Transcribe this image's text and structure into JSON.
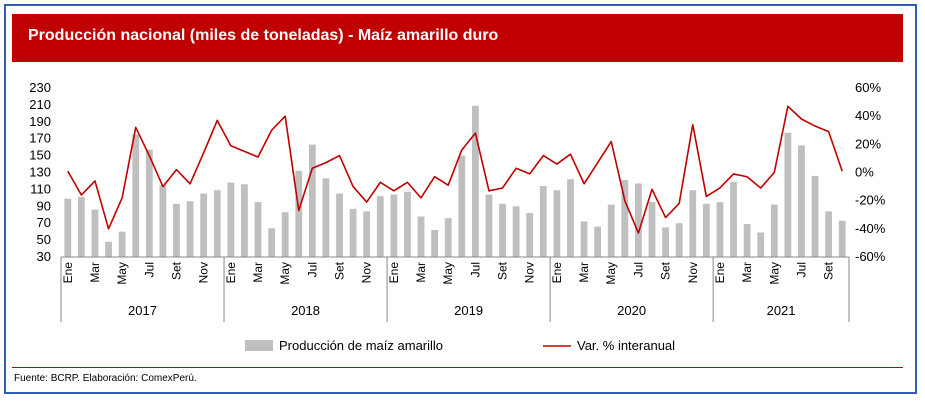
{
  "header": {
    "title": "Producción nacional (miles de toneladas) - Maíz amarillo duro"
  },
  "footer": {
    "source": "Fuente: BCRP. Elaboración: ComexPerú."
  },
  "colors": {
    "title_bg": "#c00000",
    "frame_border": "#2f5fb3",
    "bar": "#bfbfbf",
    "line": "#c00000"
  },
  "chart_data": {
    "type": "bar",
    "title": "",
    "x_tick_labels": [
      "Ene",
      "Mar",
      "May",
      "Jul",
      "Set",
      "Nov"
    ],
    "years": [
      "2017",
      "2018",
      "2019",
      "2020",
      "2021"
    ],
    "months_per_year": [
      12,
      12,
      12,
      12,
      10
    ],
    "y_left": {
      "lim": [
        30,
        230
      ],
      "ticks": [
        30,
        50,
        70,
        90,
        110,
        130,
        150,
        170,
        190,
        210,
        230
      ]
    },
    "y_right": {
      "lim": [
        -60,
        60
      ],
      "ticks": [
        "-60%",
        "-40%",
        "-20%",
        "0%",
        "20%",
        "40%",
        "60%"
      ],
      "tick_values": [
        -60,
        -40,
        -20,
        0,
        20,
        40,
        60
      ]
    },
    "legend": {
      "position": "bottom",
      "bar_label": "Producción de maíz amarillo",
      "line_label": "Var. % interanual"
    },
    "series": [
      {
        "name": "Producción de maíz amarillo",
        "type": "bar",
        "axis": "left",
        "values": [
          99,
          101,
          86,
          48,
          60,
          175,
          157,
          115,
          93,
          96,
          105,
          109,
          118,
          116,
          95,
          64,
          83,
          132,
          163,
          123,
          105,
          87,
          84,
          102,
          104,
          107,
          78,
          62,
          76,
          150,
          209,
          104,
          93,
          90,
          82,
          114,
          109,
          122,
          72,
          66,
          92,
          121,
          117,
          95,
          65,
          70,
          109,
          93,
          95,
          119,
          69,
          59,
          92,
          177,
          162,
          126,
          84,
          73
        ]
      },
      {
        "name": "Var. % interanual",
        "type": "line",
        "axis": "right",
        "values": [
          1,
          -16,
          -6,
          -40,
          -18,
          32,
          12,
          -10,
          2,
          -8,
          14,
          37,
          19,
          15,
          11,
          30,
          40,
          -27,
          3,
          7,
          12,
          -10,
          -21,
          -7,
          -13,
          -7,
          -18,
          -3,
          -9,
          16,
          28,
          -13,
          -11,
          3,
          -1,
          12,
          6,
          13,
          -8,
          7,
          22,
          -20,
          -43,
          -12,
          -32,
          -22,
          34,
          -17,
          -11,
          -1,
          -3,
          -11,
          0,
          47,
          38,
          33,
          29,
          1
        ]
      }
    ]
  }
}
